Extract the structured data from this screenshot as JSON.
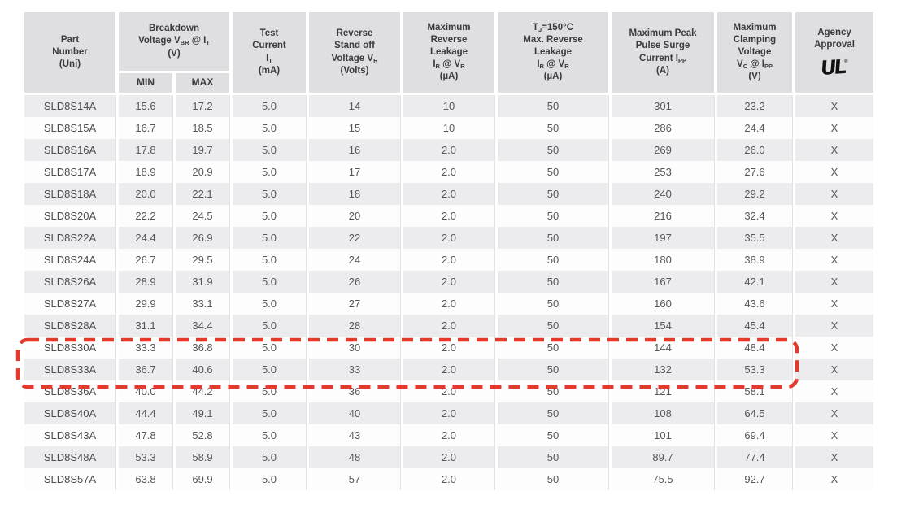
{
  "colors": {
    "highlight_red": "#e23b2e",
    "header_bg": "#dfdfe1",
    "stripe_gray": "#ececee",
    "body_text": "#57575a"
  },
  "table": {
    "headers": [
      {
        "id": "part_number",
        "label": "Part|Number|(Uni)"
      },
      {
        "id": "breakdown",
        "label": "Breakdown|Voltage V_(BR) @ I_(T)|(V)"
      },
      {
        "id": "test_current",
        "label": "Test|Current|I_(T)|(mA)"
      },
      {
        "id": "standoff",
        "label": "Reverse|Stand off|Voltage V_(R)|(Volts)"
      },
      {
        "id": "max_leakage",
        "label": "Maximum|Reverse|Leakage|I_(R) @ V_(R)|(µA)"
      },
      {
        "id": "tj_leakage",
        "label": "T_(J)=150°C|Max. Reverse|Leakage|I_(R) @ V_(R)|(µA)"
      },
      {
        "id": "surge_current",
        "label": "Maximum Peak|Pulse Surge|Current I_(PP)|(A)"
      },
      {
        "id": "clamping",
        "label": "Maximum|Clamping|Voltage|V_(C) @ I_(PP)|(V)"
      },
      {
        "id": "agency",
        "label": "Agency|Approval"
      }
    ],
    "sub_headers": {
      "min": "MIN",
      "max": "MAX"
    },
    "agency_logo_text": "UL",
    "agency_logo_reg": "®",
    "columns_order": [
      "part",
      "vbr_min",
      "vbr_max",
      "it_ma",
      "vr_volts",
      "ir_ua",
      "ir_150c_ua",
      "ipp_a",
      "vc_v",
      "agency"
    ],
    "rows": [
      [
        "SLD8S14A",
        "15.6",
        "17.2",
        "5.0",
        "14",
        "10",
        "50",
        "301",
        "23.2",
        "X"
      ],
      [
        "SLD8S15A",
        "16.7",
        "18.5",
        "5.0",
        "15",
        "10",
        "50",
        "286",
        "24.4",
        "X"
      ],
      [
        "SLD8S16A",
        "17.8",
        "19.7",
        "5.0",
        "16",
        "2.0",
        "50",
        "269",
        "26.0",
        "X"
      ],
      [
        "SLD8S17A",
        "18.9",
        "20.9",
        "5.0",
        "17",
        "2.0",
        "50",
        "253",
        "27.6",
        "X"
      ],
      [
        "SLD8S18A",
        "20.0",
        "22.1",
        "5.0",
        "18",
        "2.0",
        "50",
        "240",
        "29.2",
        "X"
      ],
      [
        "SLD8S20A",
        "22.2",
        "24.5",
        "5.0",
        "20",
        "2.0",
        "50",
        "216",
        "32.4",
        "X"
      ],
      [
        "SLD8S22A",
        "24.4",
        "26.9",
        "5.0",
        "22",
        "2.0",
        "50",
        "197",
        "35.5",
        "X"
      ],
      [
        "SLD8S24A",
        "26.7",
        "29.5",
        "5.0",
        "24",
        "2.0",
        "50",
        "180",
        "38.9",
        "X"
      ],
      [
        "SLD8S26A",
        "28.9",
        "31.9",
        "5.0",
        "26",
        "2.0",
        "50",
        "167",
        "42.1",
        "X"
      ],
      [
        "SLD8S27A",
        "29.9",
        "33.1",
        "5.0",
        "27",
        "2.0",
        "50",
        "160",
        "43.6",
        "X"
      ],
      [
        "SLD8S28A",
        "31.1",
        "34.4",
        "5.0",
        "28",
        "2.0",
        "50",
        "154",
        "45.4",
        "X"
      ],
      [
        "SLD8S30A",
        "33.3",
        "36.8",
        "5.0",
        "30",
        "2.0",
        "50",
        "144",
        "48.4",
        "X"
      ],
      [
        "SLD8S33A",
        "36.7",
        "40.6",
        "5.0",
        "33",
        "2.0",
        "50",
        "132",
        "53.3",
        "X"
      ],
      [
        "SLD8S36A",
        "40.0",
        "44.2",
        "5.0",
        "36",
        "2.0",
        "50",
        "121",
        "58.1",
        "X"
      ],
      [
        "SLD8S40A",
        "44.4",
        "49.1",
        "5.0",
        "40",
        "2.0",
        "50",
        "108",
        "64.5",
        "X"
      ],
      [
        "SLD8S43A",
        "47.8",
        "52.8",
        "5.0",
        "43",
        "2.0",
        "50",
        "101",
        "69.4",
        "X"
      ],
      [
        "SLD8S48A",
        "53.3",
        "58.9",
        "5.0",
        "48",
        "2.0",
        "50",
        "89.7",
        "77.4",
        "X"
      ],
      [
        "SLD8S57A",
        "63.8",
        "69.9",
        "5.0",
        "57",
        "2.0",
        "50",
        "75.5",
        "92.7",
        "X"
      ]
    ],
    "highlighted_parts": [
      "SLD8S30A",
      "SLD8S33A"
    ]
  }
}
